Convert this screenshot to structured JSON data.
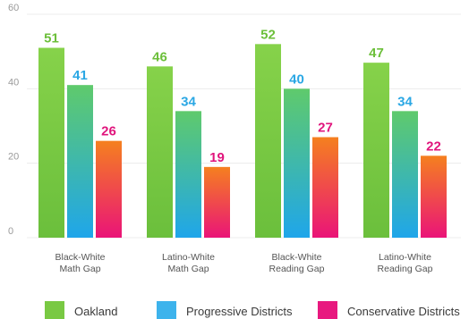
{
  "chart_data": {
    "type": "bar",
    "categories": [
      [
        "Black-White",
        "Math Gap"
      ],
      [
        "Latino-White",
        "Math Gap"
      ],
      [
        "Black-White",
        "Reading Gap"
      ],
      [
        "Latino-White",
        "Reading Gap"
      ]
    ],
    "series": [
      {
        "name": "Oakland",
        "values": [
          51,
          46,
          52,
          47
        ],
        "color": "#79c943",
        "label_color": "#6cbf3a",
        "gradient": [
          "#86d24a",
          "#6bbf3c"
        ]
      },
      {
        "name": "Progressive Districts",
        "values": [
          41,
          34,
          40,
          34
        ],
        "color": "#3db3ec",
        "label_color": "#2aa7e4",
        "gradient": [
          "#5fca6c",
          "#1fa6ea"
        ]
      },
      {
        "name": "Conservative Districts",
        "values": [
          26,
          19,
          27,
          22
        ],
        "color": "#e8197f",
        "label_color": "#e0147c",
        "gradient": [
          "#f5801f",
          "#ea1478"
        ]
      }
    ],
    "yticks": [
      0,
      20,
      40,
      60
    ],
    "ylim": [
      0,
      60
    ],
    "grid": true,
    "legend_position": "bottom"
  }
}
